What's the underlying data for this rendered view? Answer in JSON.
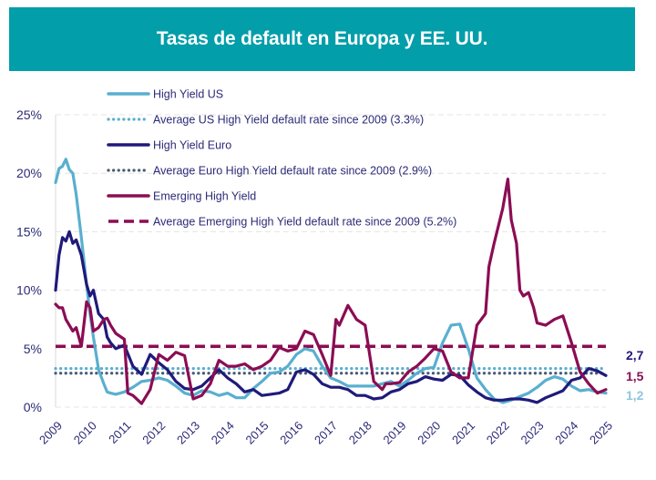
{
  "header": {
    "title": "Tasas de default en Europa y EE. UU.",
    "background_color": "#029ea9"
  },
  "chart_data": {
    "type": "line",
    "title": "Tasas de default en Europa y EE. UU.",
    "xlabel": "",
    "ylabel": "",
    "xlim": [
      2009,
      2025
    ],
    "ylim": [
      0,
      25
    ],
    "y_ticks": [
      0,
      5,
      10,
      15,
      20,
      25
    ],
    "y_tick_labels": [
      "0%",
      "5%",
      "10%",
      "15%",
      "20%",
      "25%"
    ],
    "x_tick_labels": [
      "2009",
      "2010",
      "2011",
      "2012",
      "2013",
      "2014",
      "2015",
      "2016",
      "2017",
      "2018",
      "2019",
      "2020",
      "2021",
      "2022",
      "2023",
      "2024",
      "2025"
    ],
    "grid": "horizontal dashed",
    "legend_position": "top-left inside",
    "series": [
      {
        "name": "High Yield US",
        "style": "solid",
        "color": "#5aafcf",
        "x": [
          2009.0,
          2009.1,
          2009.2,
          2009.3,
          2009.4,
          2009.5,
          2009.6,
          2009.75,
          2009.9,
          2010.0,
          2010.1,
          2010.25,
          2010.4,
          2010.5,
          2010.6,
          2010.75,
          2011.0,
          2011.25,
          2011.5,
          2011.75,
          2012.0,
          2012.25,
          2012.5,
          2012.75,
          2013.0,
          2013.25,
          2013.5,
          2013.75,
          2014.0,
          2014.25,
          2014.5,
          2014.75,
          2015.0,
          2015.25,
          2015.5,
          2015.75,
          2016.0,
          2016.25,
          2016.5,
          2016.75,
          2017.0,
          2017.25,
          2017.5,
          2017.75,
          2018.0,
          2018.25,
          2018.5,
          2018.75,
          2019.0,
          2019.25,
          2019.5,
          2019.75,
          2020.0,
          2020.25,
          2020.5,
          2020.75,
          2021.0,
          2021.25,
          2021.5,
          2021.75,
          2022.0,
          2022.25,
          2022.5,
          2022.75,
          2023.0,
          2023.25,
          2023.5,
          2023.75,
          2024.0,
          2024.25,
          2024.5,
          2024.75,
          2025.0
        ],
        "values": [
          19.2,
          20.4,
          20.6,
          21.2,
          20.3,
          20.0,
          18.2,
          14.5,
          10.5,
          8.0,
          6.0,
          3.2,
          2.0,
          1.3,
          1.2,
          1.1,
          1.3,
          1.7,
          2.2,
          2.3,
          2.5,
          2.3,
          1.8,
          1.2,
          1.0,
          1.4,
          1.3,
          1.0,
          1.2,
          0.8,
          0.8,
          1.6,
          2.2,
          2.9,
          3.0,
          3.5,
          4.5,
          5.0,
          4.8,
          3.5,
          2.5,
          2.2,
          1.8,
          1.8,
          1.8,
          1.8,
          2.0,
          2.2,
          1.8,
          2.3,
          2.9,
          3.3,
          3.4,
          5.5,
          7.0,
          7.1,
          5.0,
          2.5,
          1.5,
          0.7,
          0.4,
          0.6,
          0.9,
          1.2,
          1.7,
          2.3,
          2.6,
          2.4,
          1.8,
          1.4,
          1.5,
          1.3,
          1.2
        ]
      },
      {
        "name": "Average US High Yield default rate since 2009 (3.3%)",
        "style": "dotted",
        "color": "#5aafcf",
        "constant": 3.3
      },
      {
        "name": "High Yield Euro",
        "style": "solid",
        "color": "#1f1a7a",
        "x": [
          2009.0,
          2009.1,
          2009.2,
          2009.3,
          2009.4,
          2009.5,
          2009.6,
          2009.75,
          2009.9,
          2010.0,
          2010.1,
          2010.25,
          2010.4,
          2010.5,
          2010.6,
          2010.75,
          2011.0,
          2011.25,
          2011.5,
          2011.75,
          2012.0,
          2012.25,
          2012.5,
          2012.75,
          2013.0,
          2013.25,
          2013.5,
          2013.75,
          2014.0,
          2014.25,
          2014.5,
          2014.75,
          2015.0,
          2015.25,
          2015.5,
          2015.75,
          2016.0,
          2016.25,
          2016.5,
          2016.75,
          2017.0,
          2017.25,
          2017.5,
          2017.75,
          2018.0,
          2018.25,
          2018.5,
          2018.75,
          2019.0,
          2019.25,
          2019.5,
          2019.75,
          2020.0,
          2020.25,
          2020.5,
          2020.75,
          2021.0,
          2021.25,
          2021.5,
          2021.75,
          2022.0,
          2022.25,
          2022.5,
          2022.75,
          2023.0,
          2023.25,
          2023.5,
          2023.75,
          2024.0,
          2024.25,
          2024.5,
          2024.75,
          2025.0
        ],
        "values": [
          10.0,
          13.0,
          14.5,
          14.2,
          15.0,
          14.0,
          14.3,
          13.0,
          10.5,
          9.5,
          10.0,
          8.0,
          7.5,
          6.0,
          5.5,
          5.0,
          5.3,
          3.5,
          2.8,
          4.5,
          3.8,
          3.2,
          2.2,
          1.6,
          1.5,
          1.8,
          2.5,
          3.2,
          2.5,
          2.0,
          1.3,
          1.5,
          1.0,
          1.1,
          1.2,
          1.5,
          3.0,
          3.2,
          2.8,
          2.0,
          1.7,
          1.7,
          1.5,
          1.0,
          1.0,
          0.7,
          0.8,
          1.3,
          1.5,
          2.0,
          2.2,
          2.6,
          2.4,
          2.3,
          2.8,
          2.7,
          1.9,
          1.3,
          0.8,
          0.6,
          0.6,
          0.7,
          0.7,
          0.6,
          0.4,
          0.8,
          1.1,
          1.4,
          2.3,
          2.5,
          3.3,
          3.1,
          2.7
        ]
      },
      {
        "name": "Average Euro High Yield default rate since 2009 (2.9%)",
        "style": "dotted",
        "color": "#4a5a74",
        "constant": 2.9
      },
      {
        "name": "Emerging High Yield",
        "style": "solid",
        "color": "#8b0d54",
        "x": [
          2009.0,
          2009.1,
          2009.2,
          2009.3,
          2009.4,
          2009.5,
          2009.6,
          2009.75,
          2009.9,
          2010.0,
          2010.1,
          2010.25,
          2010.4,
          2010.5,
          2010.6,
          2010.75,
          2011.0,
          2011.1,
          2011.25,
          2011.5,
          2011.75,
          2012.0,
          2012.25,
          2012.5,
          2012.75,
          2013.0,
          2013.25,
          2013.5,
          2013.75,
          2014.0,
          2014.25,
          2014.5,
          2014.75,
          2015.0,
          2015.25,
          2015.5,
          2015.75,
          2016.0,
          2016.25,
          2016.5,
          2016.75,
          2017.0,
          2017.15,
          2017.25,
          2017.5,
          2017.75,
          2018.0,
          2018.25,
          2018.5,
          2018.6,
          2018.75,
          2019.0,
          2019.25,
          2019.5,
          2019.75,
          2020.0,
          2020.25,
          2020.5,
          2020.75,
          2021.0,
          2021.25,
          2021.5,
          2021.6,
          2021.75,
          2022.0,
          2022.15,
          2022.25,
          2022.4,
          2022.5,
          2022.6,
          2022.75,
          2022.9,
          2023.0,
          2023.25,
          2023.5,
          2023.75,
          2024.0,
          2024.25,
          2024.5,
          2024.75,
          2025.0
        ],
        "values": [
          8.8,
          8.5,
          8.5,
          7.5,
          7.0,
          6.5,
          6.8,
          5.2,
          9.0,
          8.5,
          6.5,
          6.8,
          7.5,
          7.6,
          7.0,
          6.3,
          5.8,
          1.2,
          1.0,
          0.3,
          1.5,
          4.5,
          4.0,
          4.7,
          4.4,
          0.7,
          1.0,
          2.0,
          4.0,
          3.5,
          3.5,
          3.7,
          3.2,
          3.5,
          4.0,
          5.1,
          4.8,
          5.0,
          6.5,
          6.2,
          4.5,
          2.7,
          7.5,
          7.0,
          8.7,
          7.5,
          7.0,
          2.2,
          1.5,
          2.0,
          2.0,
          2.1,
          3.0,
          3.5,
          4.2,
          5.0,
          4.8,
          3.0,
          2.5,
          2.5,
          7.0,
          8.0,
          12.0,
          14.0,
          17.0,
          19.5,
          16.0,
          14.0,
          10.0,
          9.5,
          9.8,
          8.5,
          7.2,
          7.0,
          7.5,
          7.8,
          5.5,
          3.0,
          2.0,
          1.2,
          1.5
        ]
      },
      {
        "name": "Average Emerging High Yield default rate since 2009 (5.2%)",
        "style": "dashed",
        "color": "#8b0d54",
        "constant": 5.2
      }
    ],
    "end_labels": [
      {
        "text": "2,7",
        "series": "High Yield Euro",
        "color": "#1f1a7a"
      },
      {
        "text": "1,5",
        "series": "Emerging High Yield",
        "color": "#8b0d54"
      },
      {
        "text": "1,2",
        "series": "High Yield US",
        "color": "#8fc6dc"
      }
    ]
  }
}
